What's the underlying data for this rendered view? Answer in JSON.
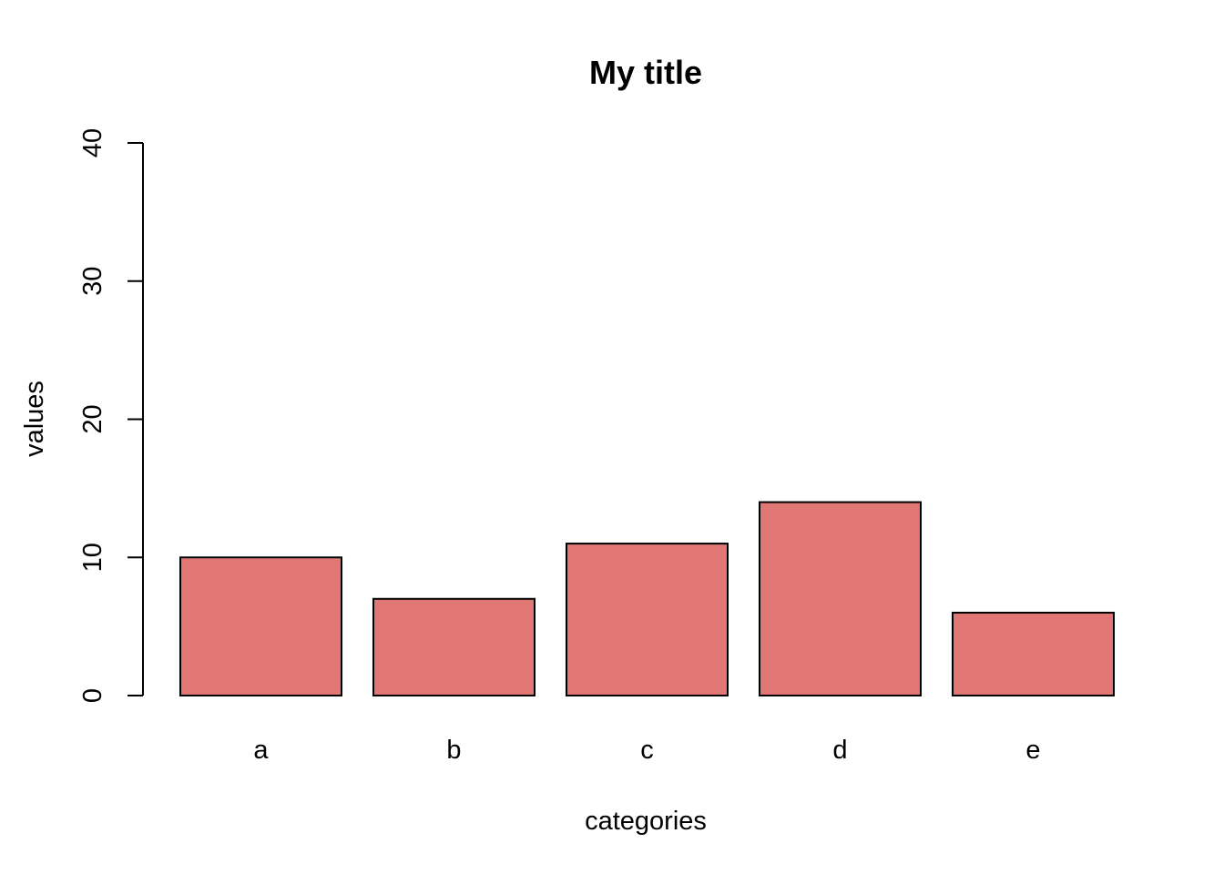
{
  "chart_data": {
    "type": "bar",
    "title": "My title",
    "xlabel": "categories",
    "ylabel": "values",
    "categories": [
      "a",
      "b",
      "c",
      "d",
      "e"
    ],
    "values": [
      10,
      7,
      11,
      14,
      6
    ],
    "ylim": [
      0,
      40
    ],
    "yticks": [
      0,
      10,
      20,
      30,
      40
    ],
    "bar_color": "#e07775",
    "bar_border_color": "#000000",
    "grid": false,
    "legend": "none"
  }
}
